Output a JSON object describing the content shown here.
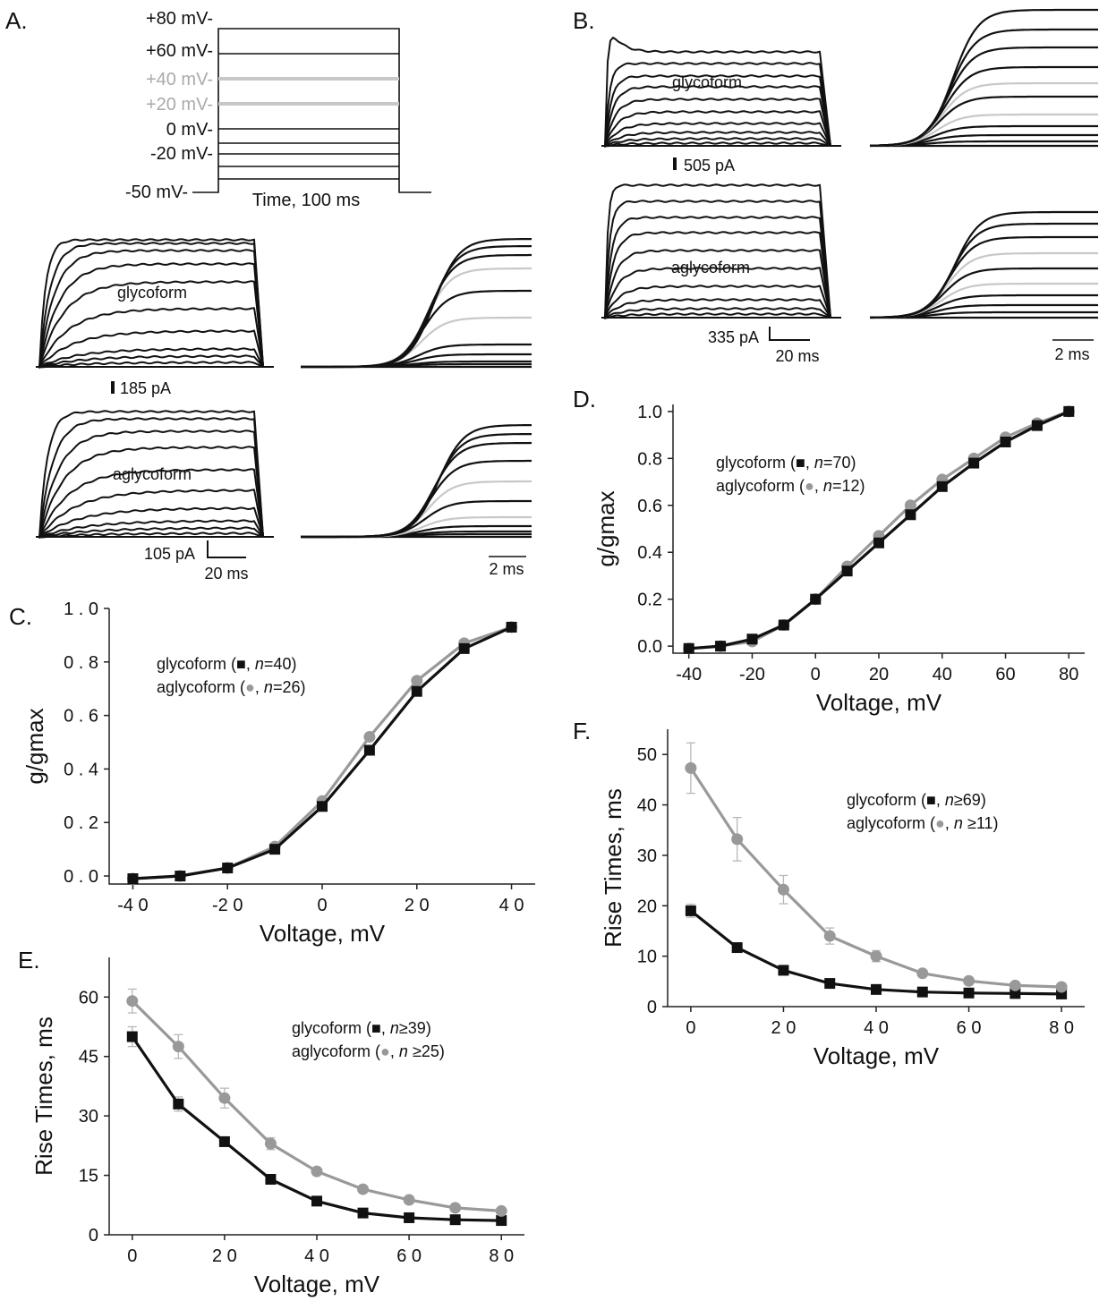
{
  "colors": {
    "glycoform": "#111111",
    "aglycoform": "#999999",
    "highlight_trace": "#c8c8c8",
    "axis": "#222222"
  },
  "panelA": {
    "letter": "A.",
    "protocol": {
      "levels": [
        "+80 mV-",
        "+60 mV-",
        "+40 mV-",
        "+20 mV-",
        "0 mV-",
        "-20 mV-",
        "-50 mV-"
      ],
      "time_label": "Time, 100 ms"
    },
    "traces": [
      {
        "label": "glycoform",
        "scale": "185 pA"
      },
      {
        "label": "aglycoform",
        "scale": "105 pA",
        "time_scale": "20 ms"
      }
    ],
    "zoom_scale": "2 ms"
  },
  "panelB": {
    "letter": "B.",
    "traces": [
      {
        "label": "glycoform",
        "scale": "505 pA"
      },
      {
        "label": "aglycoform",
        "scale": "335 pA",
        "time_scale": "20 ms"
      }
    ],
    "zoom_scale": "2 ms"
  },
  "chart_data": [
    {
      "id": "C",
      "letter": "C.",
      "type": "line",
      "xlabel": "Voltage, mV",
      "ylabel": "g/gmax",
      "xlim": [
        -45,
        45
      ],
      "ylim": [
        -0.03,
        1.0
      ],
      "xticks": [
        -40,
        -20,
        0,
        20,
        40
      ],
      "xtick_labels": [
        "-4 0",
        "-2 0",
        "0",
        "2 0",
        "4 0"
      ],
      "yticks": [
        0.0,
        0.2,
        0.4,
        0.6,
        0.8,
        1.0
      ],
      "ytick_labels": [
        "0 . 0",
        "0 . 2",
        "0 . 4",
        "0 . 6",
        "0 . 8",
        "1 . 0"
      ],
      "legend": [
        {
          "pre": "glycoform (",
          "marker": "square",
          "mid": ", ",
          "n": "n",
          "post": "=40)"
        },
        {
          "pre": "aglycoform (",
          "marker": "circle",
          "mid": ", ",
          "n": "n",
          "post": "=26)"
        }
      ],
      "series": [
        {
          "name": "glycoform",
          "marker": "square",
          "x": [
            -40,
            -30,
            -20,
            -10,
            0,
            10,
            20,
            30,
            40
          ],
          "y": [
            -0.01,
            0.0,
            0.03,
            0.1,
            0.26,
            0.47,
            0.69,
            0.85,
            0.93
          ]
        },
        {
          "name": "aglycoform",
          "marker": "circle",
          "x": [
            -40,
            -30,
            -20,
            -10,
            0,
            10,
            20,
            30,
            40
          ],
          "y": [
            -0.01,
            0.0,
            0.03,
            0.11,
            0.28,
            0.52,
            0.73,
            0.87,
            0.93
          ]
        }
      ]
    },
    {
      "id": "D",
      "letter": "D.",
      "type": "line",
      "xlabel": "Voltage, mV",
      "ylabel": "g/gmax",
      "xlim": [
        -45,
        85
      ],
      "ylim": [
        -0.03,
        1.03
      ],
      "xticks": [
        -40,
        -20,
        0,
        20,
        40,
        60,
        80
      ],
      "xtick_labels": [
        "-40",
        "-20",
        "0",
        "20",
        "40",
        "60",
        "80"
      ],
      "yticks": [
        0.0,
        0.2,
        0.4,
        0.6,
        0.8,
        1.0
      ],
      "ytick_labels": [
        "0.0",
        "0.2",
        "0.4",
        "0.6",
        "0.8",
        "1.0"
      ],
      "legend": [
        {
          "pre": "glycoform (",
          "marker": "square",
          "mid": ", ",
          "n": "n",
          "post": "=70)"
        },
        {
          "pre": "aglycoform (",
          "marker": "circle",
          "mid": ", ",
          "n": "n",
          "post": "=12)"
        }
      ],
      "series": [
        {
          "name": "glycoform",
          "marker": "square",
          "x": [
            -40,
            -30,
            -20,
            -10,
            0,
            10,
            20,
            30,
            40,
            50,
            60,
            70,
            80
          ],
          "y": [
            -0.01,
            0.0,
            0.03,
            0.09,
            0.2,
            0.32,
            0.44,
            0.56,
            0.68,
            0.78,
            0.87,
            0.94,
            1.0
          ]
        },
        {
          "name": "aglycoform",
          "marker": "circle",
          "x": [
            -40,
            -30,
            -20,
            -10,
            0,
            10,
            20,
            30,
            40,
            50,
            60,
            70,
            80
          ],
          "y": [
            -0.01,
            0.0,
            0.02,
            0.09,
            0.2,
            0.34,
            0.47,
            0.6,
            0.71,
            0.8,
            0.89,
            0.95,
            1.0
          ]
        }
      ]
    },
    {
      "id": "E",
      "letter": "E.",
      "type": "line",
      "xlabel": "Voltage, mV",
      "ylabel": "Rise Times, ms",
      "xlim": [
        -5,
        85
      ],
      "ylim": [
        0,
        70
      ],
      "xticks": [
        0,
        20,
        40,
        60,
        80
      ],
      "xtick_labels": [
        "0",
        "2 0",
        "4 0",
        "6 0",
        "8 0"
      ],
      "yticks": [
        0,
        15,
        30,
        45,
        60
      ],
      "ytick_labels": [
        "0",
        "15",
        "30",
        "45",
        "60"
      ],
      "legend": [
        {
          "pre": "glycoform (",
          "marker": "square",
          "mid": ", ",
          "n": "n",
          "post": "≥39)"
        },
        {
          "pre": "aglycoform (",
          "marker": "circle",
          "mid": ", ",
          "n": "n",
          "post": " ≥25)"
        }
      ],
      "series": [
        {
          "name": "glycoform",
          "marker": "square",
          "x": [
            0,
            10,
            20,
            30,
            40,
            50,
            60,
            70,
            80
          ],
          "y": [
            50,
            33,
            23.5,
            14,
            8.5,
            5.5,
            4.3,
            3.8,
            3.6
          ],
          "err": [
            2.5,
            1.8,
            1.2,
            0.8,
            0.5,
            0.4,
            0.3,
            0.3,
            0.3
          ]
        },
        {
          "name": "aglycoform",
          "marker": "circle",
          "x": [
            0,
            10,
            20,
            30,
            40,
            50,
            60,
            70,
            80
          ],
          "y": [
            59,
            47.5,
            34.5,
            23,
            16,
            11.5,
            8.8,
            6.8,
            6
          ],
          "err": [
            3,
            3,
            2.5,
            1.5,
            0.8,
            0.5,
            0.4,
            0.3,
            0.3
          ]
        }
      ]
    },
    {
      "id": "F",
      "letter": "F.",
      "type": "line",
      "xlabel": "Voltage, mV",
      "ylabel": "Rise Times, ms",
      "xlim": [
        -5,
        85
      ],
      "ylim": [
        0,
        55
      ],
      "xticks": [
        0,
        20,
        40,
        60,
        80
      ],
      "xtick_labels": [
        "0",
        "2 0",
        "4 0",
        "6 0",
        "8 0"
      ],
      "yticks": [
        0,
        10,
        20,
        30,
        40,
        50
      ],
      "ytick_labels": [
        "0",
        "10",
        "20",
        "30",
        "40",
        "50"
      ],
      "legend": [
        {
          "pre": "glycoform (",
          "marker": "square",
          "mid": ", ",
          "n": "n",
          "post": "≥69)"
        },
        {
          "pre": "aglycoform (",
          "marker": "circle",
          "mid": ", ",
          "n": "n",
          "post": " ≥11)"
        }
      ],
      "series": [
        {
          "name": "glycoform",
          "marker": "square",
          "x": [
            0,
            10,
            20,
            30,
            40,
            50,
            60,
            70,
            80
          ],
          "y": [
            19,
            11.7,
            7.2,
            4.6,
            3.4,
            2.9,
            2.7,
            2.6,
            2.5
          ],
          "err": [
            1.3,
            0.7,
            0.5,
            0.3,
            0.3,
            0.2,
            0.2,
            0.2,
            0.2
          ]
        },
        {
          "name": "aglycoform",
          "marker": "circle",
          "x": [
            0,
            10,
            20,
            30,
            40,
            50,
            60,
            70,
            80
          ],
          "y": [
            47.3,
            33.2,
            23.2,
            14,
            10,
            6.6,
            5.1,
            4.2,
            3.9
          ],
          "err": [
            5,
            4.3,
            2.8,
            1.6,
            1.1,
            0.5,
            0.4,
            0.3,
            0.3
          ]
        }
      ]
    }
  ]
}
